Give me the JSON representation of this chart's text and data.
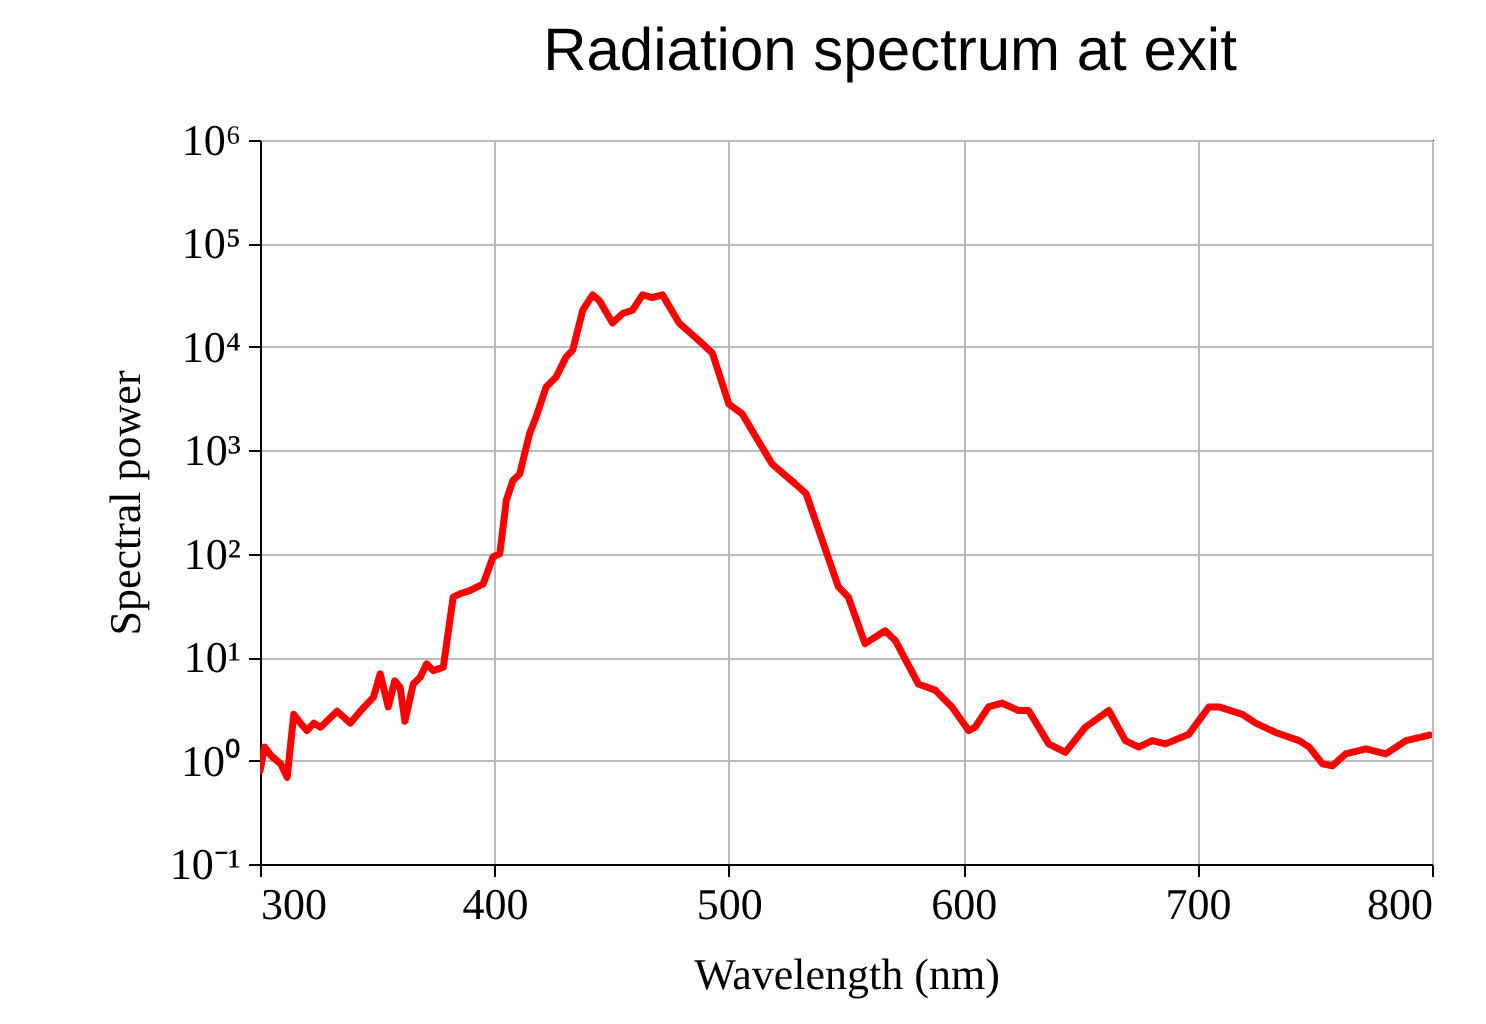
{
  "chart_data": {
    "type": "line",
    "title": "Radiation spectrum at exit",
    "xlabel": "Wavelength (nm)",
    "ylabel": "Spectral power",
    "log": "y",
    "grid": true,
    "xlim": [
      300,
      800
    ],
    "xticks": [
      300,
      400,
      500,
      600,
      700,
      800
    ],
    "ylim": [
      0.1,
      1000000
    ],
    "yticks": [
      {
        "value": 0.1,
        "label": "10⁻¹"
      },
      {
        "value": 1,
        "label": "10⁰"
      },
      {
        "value": 10,
        "label": "10¹"
      },
      {
        "value": 100,
        "label": "10²"
      },
      {
        "value": 1000,
        "label": "10³"
      },
      {
        "value": 10000,
        "label": "10⁴"
      },
      {
        "value": 100000,
        "label": "10⁵"
      },
      {
        "value": 1000000,
        "label": "10⁶"
      }
    ],
    "x": [
      300,
      302,
      305,
      308.8,
      311.6,
      314.4,
      317.3,
      320,
      323,
      325.8,
      332.9,
      338.5,
      342.8,
      348.4,
      351.3,
      354.7,
      357.5,
      359.8,
      361.8,
      365.4,
      368.3,
      371.1,
      373.9,
      378.2,
      382.4,
      385.3,
      389.5,
      395.2,
      399.4,
      402.3,
      405.1,
      407.9,
      410.8,
      415,
      417.8,
      422.1,
      426.3,
      430.6,
      433.4,
      437.7,
      441.9,
      444.8,
      450.4,
      454.7,
      458.9,
      463.2,
      467.4,
      471.7,
      478.8,
      487.3,
      493,
      500,
      505.7,
      518.4,
      528.3,
      533,
      546.7,
      551,
      558.1,
      566.7,
      571,
      580.9,
      588,
      595.2,
      602.3,
      605.1,
      610.8,
      616.5,
      623.6,
      627.9,
      636.5,
      643.6,
      652.1,
      662.1,
      669.2,
      674.9,
      680.6,
      686.3,
      696.3,
      704.8,
      709.1,
      719.1,
      724.8,
      733.3,
      743.3,
      747.6,
      753.3,
      757.5,
      763.2,
      771.8,
      780.3,
      788.9,
      798.9
    ],
    "series": [
      {
        "color": "#ff0000",
        "values": [
          0.8,
          1.35,
          1.1,
          0.93,
          0.69,
          2.8,
          2.3,
          1.95,
          2.3,
          2.1,
          3.0,
          2.3,
          3.0,
          4.1,
          6.9,
          3.3,
          5.9,
          5.1,
          2.4,
          5.5,
          6.4,
          8.6,
          7.4,
          8.0,
          38,
          41,
          44,
          51,
          93,
          100,
          330,
          510,
          590,
          1450,
          2100,
          4100,
          5100,
          8000,
          9300,
          22600,
          31800,
          28000,
          17000,
          21000,
          22600,
          31800,
          30000,
          31800,
          17000,
          11500,
          8700,
          2800,
          2250,
          740,
          475,
          380,
          48,
          38,
          13.5,
          18,
          14.5,
          5.5,
          4.8,
          3.3,
          1.95,
          2.1,
          3.3,
          3.6,
          3.05,
          3.05,
          1.45,
          1.2,
          2.1,
          3.05,
          1.56,
          1.35,
          1.56,
          1.45,
          1.8,
          3.3,
          3.3,
          2.8,
          2.3,
          1.87,
          1.56,
          1.35,
          0.93,
          0.89,
          1.16,
          1.3,
          1.16,
          1.56,
          1.76
        ]
      }
    ]
  }
}
